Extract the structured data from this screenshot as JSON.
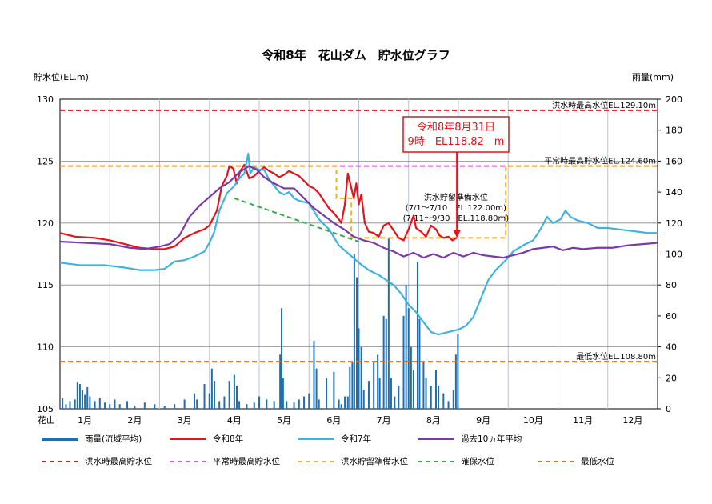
{
  "title": "令和8年　花山ダム　貯水位グラフ",
  "left_axis_title": "貯水位(EL.m)",
  "right_axis_title": "雨量(mm)",
  "x_label_prefix": "花山",
  "colors": {
    "rain": "#1f6fb0",
    "r8": "#e4141b",
    "r7": "#3fb3e0",
    "avg10": "#7a3aa8",
    "flood_max": "#d7191c",
    "normal_max": "#e84fd2",
    "flood_prep": "#f4b320",
    "secure": "#2fae4a",
    "min": "#e86b17",
    "grid": "#b8c4dc"
  },
  "chart_data": {
    "type": "line",
    "months": [
      "1月",
      "2月",
      "3月",
      "4月",
      "5月",
      "6月",
      "7月",
      "8月",
      "9月",
      "10月",
      "11月",
      "12月"
    ],
    "y_left": {
      "min": 105,
      "max": 130,
      "ticks": [
        105,
        110,
        115,
        120,
        125,
        130
      ]
    },
    "y_right": {
      "min": 0,
      "max": 200,
      "ticks": [
        0,
        20,
        40,
        60,
        80,
        100,
        120,
        140,
        160,
        180,
        200
      ]
    },
    "grid": true,
    "reference_lines": [
      {
        "name": "洪水時最高水位",
        "value": 129.1,
        "label": "洪水時最高水位EL.129.10m",
        "color_key": "flood_max"
      },
      {
        "name": "平常時最高貯水位",
        "value": 124.6,
        "label": "平常時最高貯水位EL.124.60m",
        "color_key": "normal_max"
      },
      {
        "name": "最低水位",
        "value": 108.8,
        "label": "最低水位EL.108.80m",
        "color_key": "min"
      }
    ],
    "flood_prep": {
      "name": "洪水貯留準備水位",
      "points": [
        [
          0,
          124.6
        ],
        [
          5.55,
          124.6
        ],
        [
          5.55,
          122.0
        ],
        [
          5.85,
          122.0
        ],
        [
          5.85,
          118.8
        ],
        [
          8.95,
          118.8
        ],
        [
          8.95,
          124.6
        ],
        [
          12,
          124.6
        ]
      ],
      "label": [
        "洪水貯留準備水位",
        "(7/1～7/10　EL.122.00m)",
        "(7/11～9/30　EL.118.80m)"
      ]
    },
    "secure_level": {
      "name": "確保水位",
      "points": [
        [
          3.5,
          122.0
        ],
        [
          6.0,
          118.5
        ]
      ]
    },
    "annotation": {
      "lines": [
        "令和8年8月31日",
        "9時　EL118.82　m"
      ],
      "x": 7.97,
      "y": 118.82
    },
    "series": [
      {
        "name": "令和8年",
        "color_key": "r8",
        "points": [
          [
            0,
            119.2
          ],
          [
            0.3,
            118.9
          ],
          [
            0.7,
            118.8
          ],
          [
            1.0,
            118.6
          ],
          [
            1.3,
            118.3
          ],
          [
            1.6,
            118.0
          ],
          [
            1.9,
            117.9
          ],
          [
            2.1,
            117.9
          ],
          [
            2.3,
            118.1
          ],
          [
            2.5,
            118.8
          ],
          [
            2.7,
            119.2
          ],
          [
            2.9,
            119.5
          ],
          [
            3.0,
            119.8
          ],
          [
            3.15,
            121.0
          ],
          [
            3.25,
            123.0
          ],
          [
            3.35,
            123.8
          ],
          [
            3.4,
            124.6
          ],
          [
            3.48,
            124.4
          ],
          [
            3.55,
            123.2
          ],
          [
            3.62,
            124.2
          ],
          [
            3.7,
            124.7
          ],
          [
            3.8,
            123.6
          ],
          [
            3.9,
            123.8
          ],
          [
            4.0,
            124.2
          ],
          [
            4.1,
            124.5
          ],
          [
            4.2,
            124.2
          ],
          [
            4.3,
            124.0
          ],
          [
            4.4,
            123.7
          ],
          [
            4.5,
            123.9
          ],
          [
            4.6,
            124.2
          ],
          [
            4.7,
            124.0
          ],
          [
            4.8,
            123.8
          ],
          [
            4.9,
            123.4
          ],
          [
            5.0,
            123.0
          ],
          [
            5.1,
            122.8
          ],
          [
            5.2,
            122.4
          ],
          [
            5.3,
            121.8
          ],
          [
            5.4,
            121.2
          ],
          [
            5.5,
            120.8
          ],
          [
            5.6,
            120.3
          ],
          [
            5.65,
            120.0
          ],
          [
            5.72,
            121.5
          ],
          [
            5.78,
            124.0
          ],
          [
            5.84,
            123.0
          ],
          [
            5.9,
            122.0
          ],
          [
            5.95,
            123.2
          ],
          [
            6.0,
            121.5
          ],
          [
            6.05,
            122.3
          ],
          [
            6.12,
            120.0
          ],
          [
            6.2,
            119.3
          ],
          [
            6.3,
            119.2
          ],
          [
            6.4,
            118.9
          ],
          [
            6.5,
            119.8
          ],
          [
            6.6,
            120.0
          ],
          [
            6.7,
            119.4
          ],
          [
            6.8,
            118.8
          ],
          [
            6.9,
            118.6
          ],
          [
            7.0,
            119.5
          ],
          [
            7.1,
            120.6
          ],
          [
            7.15,
            119.6
          ],
          [
            7.25,
            119.3
          ],
          [
            7.35,
            118.9
          ],
          [
            7.45,
            119.8
          ],
          [
            7.55,
            119.5
          ],
          [
            7.62,
            119.0
          ],
          [
            7.7,
            118.8
          ],
          [
            7.8,
            118.9
          ],
          [
            7.88,
            118.6
          ],
          [
            7.97,
            118.82
          ]
        ]
      },
      {
        "name": "令和7年",
        "color_key": "r7",
        "points": [
          [
            0,
            116.8
          ],
          [
            0.4,
            116.6
          ],
          [
            0.9,
            116.6
          ],
          [
            1.3,
            116.4
          ],
          [
            1.6,
            116.2
          ],
          [
            1.9,
            116.2
          ],
          [
            2.1,
            116.3
          ],
          [
            2.3,
            116.9
          ],
          [
            2.5,
            117.0
          ],
          [
            2.7,
            117.3
          ],
          [
            2.9,
            117.7
          ],
          [
            3.0,
            118.4
          ],
          [
            3.1,
            119.3
          ],
          [
            3.2,
            121.0
          ],
          [
            3.35,
            122.4
          ],
          [
            3.5,
            123.0
          ],
          [
            3.6,
            123.6
          ],
          [
            3.7,
            124.0
          ],
          [
            3.78,
            125.6
          ],
          [
            3.82,
            124.0
          ],
          [
            3.9,
            124.5
          ],
          [
            4.0,
            124.3
          ],
          [
            4.1,
            124.3
          ],
          [
            4.2,
            123.5
          ],
          [
            4.3,
            123.0
          ],
          [
            4.4,
            122.5
          ],
          [
            4.5,
            122.3
          ],
          [
            4.6,
            122.5
          ],
          [
            4.7,
            122.0
          ],
          [
            4.8,
            121.8
          ],
          [
            5.0,
            121.6
          ],
          [
            5.2,
            120.3
          ],
          [
            5.4,
            119.5
          ],
          [
            5.6,
            118.2
          ],
          [
            5.8,
            117.5
          ],
          [
            6.0,
            116.8
          ],
          [
            6.2,
            116.2
          ],
          [
            6.4,
            115.8
          ],
          [
            6.55,
            115.4
          ],
          [
            6.7,
            115.0
          ],
          [
            6.85,
            114.3
          ],
          [
            7.0,
            113.4
          ],
          [
            7.15,
            112.8
          ],
          [
            7.3,
            112.0
          ],
          [
            7.45,
            111.2
          ],
          [
            7.6,
            111.0
          ],
          [
            7.8,
            111.2
          ],
          [
            8.0,
            111.4
          ],
          [
            8.15,
            111.7
          ],
          [
            8.3,
            112.4
          ],
          [
            8.45,
            113.9
          ],
          [
            8.6,
            115.4
          ],
          [
            8.75,
            116.2
          ],
          [
            8.95,
            117.0
          ],
          [
            9.1,
            117.7
          ],
          [
            9.3,
            118.2
          ],
          [
            9.5,
            118.6
          ],
          [
            9.65,
            119.5
          ],
          [
            9.78,
            120.5
          ],
          [
            9.9,
            120.0
          ],
          [
            10.05,
            120.3
          ],
          [
            10.15,
            121.0
          ],
          [
            10.25,
            120.5
          ],
          [
            10.4,
            120.2
          ],
          [
            10.6,
            120.0
          ],
          [
            10.8,
            119.6
          ],
          [
            11.0,
            119.6
          ],
          [
            11.2,
            119.5
          ],
          [
            11.4,
            119.4
          ],
          [
            11.6,
            119.3
          ],
          [
            11.8,
            119.2
          ],
          [
            12.0,
            119.2
          ]
        ]
      },
      {
        "name": "過去10ヵ年平均",
        "color_key": "avg10",
        "points": [
          [
            0,
            118.5
          ],
          [
            0.5,
            118.4
          ],
          [
            1.0,
            118.3
          ],
          [
            1.4,
            118.0
          ],
          [
            1.7,
            117.9
          ],
          [
            2.0,
            118.1
          ],
          [
            2.2,
            118.3
          ],
          [
            2.4,
            119.0
          ],
          [
            2.6,
            120.5
          ],
          [
            2.8,
            121.4
          ],
          [
            3.0,
            122.1
          ],
          [
            3.2,
            122.8
          ],
          [
            3.4,
            123.3
          ],
          [
            3.6,
            124.1
          ],
          [
            3.8,
            124.6
          ],
          [
            3.95,
            124.3
          ],
          [
            4.1,
            123.7
          ],
          [
            4.3,
            123.2
          ],
          [
            4.5,
            122.8
          ],
          [
            4.7,
            122.8
          ],
          [
            4.9,
            122.0
          ],
          [
            5.1,
            121.2
          ],
          [
            5.3,
            120.6
          ],
          [
            5.5,
            120.0
          ],
          [
            5.7,
            119.5
          ],
          [
            5.9,
            118.9
          ],
          [
            6.1,
            118.6
          ],
          [
            6.3,
            118.4
          ],
          [
            6.5,
            118.0
          ],
          [
            6.7,
            117.7
          ],
          [
            6.9,
            117.3
          ],
          [
            7.1,
            117.6
          ],
          [
            7.3,
            117.2
          ],
          [
            7.5,
            117.5
          ],
          [
            7.7,
            117.2
          ],
          [
            7.9,
            117.6
          ],
          [
            8.1,
            117.3
          ],
          [
            8.3,
            117.6
          ],
          [
            8.5,
            117.4
          ],
          [
            8.7,
            117.3
          ],
          [
            8.9,
            117.2
          ],
          [
            9.1,
            117.4
          ],
          [
            9.3,
            117.6
          ],
          [
            9.5,
            117.9
          ],
          [
            9.7,
            118.0
          ],
          [
            9.9,
            118.1
          ],
          [
            10.1,
            117.8
          ],
          [
            10.3,
            118.0
          ],
          [
            10.5,
            117.9
          ],
          [
            10.8,
            118.0
          ],
          [
            11.1,
            118.0
          ],
          [
            11.4,
            118.2
          ],
          [
            11.7,
            118.3
          ],
          [
            12.0,
            118.4
          ]
        ]
      }
    ],
    "rain": {
      "name": "雨量(流域平均)",
      "bars": [
        [
          0.05,
          7
        ],
        [
          0.12,
          3
        ],
        [
          0.2,
          5
        ],
        [
          0.3,
          6
        ],
        [
          0.35,
          17
        ],
        [
          0.4,
          16
        ],
        [
          0.45,
          12
        ],
        [
          0.5,
          9
        ],
        [
          0.55,
          14
        ],
        [
          0.6,
          8
        ],
        [
          0.7,
          5
        ],
        [
          0.8,
          7
        ],
        [
          0.9,
          4
        ],
        [
          1.0,
          3
        ],
        [
          1.1,
          6
        ],
        [
          1.2,
          3
        ],
        [
          1.35,
          5
        ],
        [
          1.5,
          2
        ],
        [
          1.7,
          4
        ],
        [
          1.9,
          3
        ],
        [
          2.1,
          2
        ],
        [
          2.3,
          3
        ],
        [
          2.5,
          6
        ],
        [
          2.7,
          10
        ],
        [
          2.75,
          6
        ],
        [
          2.9,
          16
        ],
        [
          3.0,
          10
        ],
        [
          3.05,
          26
        ],
        [
          3.1,
          18
        ],
        [
          3.2,
          5
        ],
        [
          3.3,
          8
        ],
        [
          3.4,
          18
        ],
        [
          3.5,
          22
        ],
        [
          3.55,
          15
        ],
        [
          3.6,
          5
        ],
        [
          3.75,
          3
        ],
        [
          3.9,
          4
        ],
        [
          4.0,
          8
        ],
        [
          4.15,
          6
        ],
        [
          4.3,
          5
        ],
        [
          4.42,
          35
        ],
        [
          4.45,
          65
        ],
        [
          4.48,
          20
        ],
        [
          4.55,
          5
        ],
        [
          4.7,
          4
        ],
        [
          4.8,
          6
        ],
        [
          4.9,
          8
        ],
        [
          5.0,
          10
        ],
        [
          5.1,
          44
        ],
        [
          5.15,
          26
        ],
        [
          5.2,
          6
        ],
        [
          5.35,
          20
        ],
        [
          5.5,
          24
        ],
        [
          5.6,
          6
        ],
        [
          5.65,
          3
        ],
        [
          5.72,
          8
        ],
        [
          5.78,
          8
        ],
        [
          5.82,
          27
        ],
        [
          5.87,
          30
        ],
        [
          5.91,
          100
        ],
        [
          5.96,
          85
        ],
        [
          6.0,
          52
        ],
        [
          6.05,
          40
        ],
        [
          6.1,
          12
        ],
        [
          6.2,
          18
        ],
        [
          6.3,
          30
        ],
        [
          6.38,
          35
        ],
        [
          6.42,
          20
        ],
        [
          6.5,
          60
        ],
        [
          6.55,
          58
        ],
        [
          6.6,
          110
        ],
        [
          6.65,
          20
        ],
        [
          6.72,
          8
        ],
        [
          6.8,
          15
        ],
        [
          6.9,
          60
        ],
        [
          6.95,
          80
        ],
        [
          7.0,
          65
        ],
        [
          7.05,
          40
        ],
        [
          7.1,
          25
        ],
        [
          7.18,
          95
        ],
        [
          7.22,
          58
        ],
        [
          7.3,
          30
        ],
        [
          7.35,
          20
        ],
        [
          7.45,
          15
        ],
        [
          7.55,
          25
        ],
        [
          7.6,
          15
        ],
        [
          7.7,
          10
        ],
        [
          7.8,
          5
        ],
        [
          7.9,
          12
        ],
        [
          7.95,
          35
        ],
        [
          7.99,
          48
        ]
      ]
    }
  },
  "legend": [
    {
      "label": "雨量(流域平均)",
      "color_key": "rain",
      "style": "thick"
    },
    {
      "label": "令和8年",
      "color_key": "r8",
      "style": "solid"
    },
    {
      "label": "令和7年",
      "color_key": "r7",
      "style": "solid"
    },
    {
      "label": "過去10ヵ年平均",
      "color_key": "avg10",
      "style": "solid"
    },
    {
      "label": "洪水時最高貯水位",
      "color_key": "flood_max",
      "style": "dashed"
    },
    {
      "label": "平常時最高貯水位",
      "color_key": "normal_max",
      "style": "dashed"
    },
    {
      "label": "洪水貯留準備水位",
      "color_key": "flood_prep",
      "style": "dashed"
    },
    {
      "label": "確保水位",
      "color_key": "secure",
      "style": "dashed"
    },
    {
      "label": "最低水位",
      "color_key": "min",
      "style": "dashed"
    }
  ]
}
